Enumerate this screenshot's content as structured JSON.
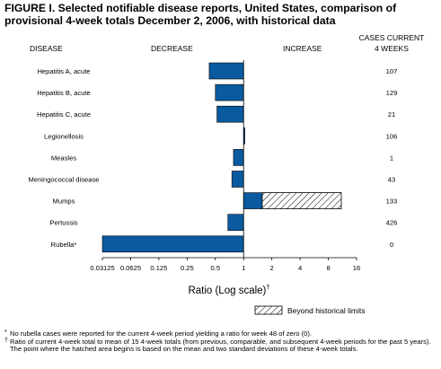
{
  "title": "FIGURE I. Selected notifiable disease reports, United States, comparison of provisional 4-week totals December 2, 2006, with historical data",
  "headers": {
    "disease": "DISEASE",
    "decrease": "DECREASE",
    "increase": "INCREASE",
    "cases_line1": "CASES CURRENT",
    "cases_line2": "4 WEEKS"
  },
  "chart_data": {
    "type": "bar",
    "orientation": "horizontal",
    "x_scale": "log2",
    "xlabel": "Ratio (Log scale)",
    "xlabel_marker": "†",
    "xlim": [
      0.03125,
      16
    ],
    "x_ticks": [
      0.03125,
      0.0625,
      0.125,
      0.25,
      0.5,
      1,
      2,
      4,
      8,
      16
    ],
    "x_tick_labels": [
      "0.03125",
      "0.0625",
      "0.125",
      "0.25",
      "0.5",
      "1",
      "2",
      "4",
      "8",
      "16"
    ],
    "categories": [
      "Hepatitis A, acute",
      "Hepatitis B, acute",
      "Hepatitis C, acute",
      "Legionellosis",
      "Measles",
      "Meningococcal disease",
      "Mumps",
      "Pertussis",
      "Rubella*"
    ],
    "values": [
      0.43,
      0.5,
      0.52,
      1.03,
      0.78,
      0.75,
      11.0,
      0.68,
      0.03125
    ],
    "historical_limit": [
      null,
      null,
      null,
      null,
      null,
      null,
      1.58,
      null,
      null
    ],
    "cases_current_4_weeks": [
      "107",
      "129",
      "21",
      "106",
      "1",
      "43",
      "133",
      "426",
      "0"
    ],
    "colors": {
      "bar": "#0a5aa0",
      "beyond": "#ffffff"
    },
    "legend": {
      "label": "Beyond historical limits",
      "pattern": "hatched"
    }
  },
  "footnotes": [
    {
      "mark": "*",
      "text": "No rubella cases were reported for the current 4-week period yielding a ratio for week 48 of zero (0)."
    },
    {
      "mark": "†",
      "text": "Ratio of current 4-week total to mean of 15 4-week totals (from previous, comparable, and subsequent 4-week periods for the past 5 years). The point where the hatched area begins is based on the mean and two standard deviations of these 4-week totals."
    }
  ]
}
